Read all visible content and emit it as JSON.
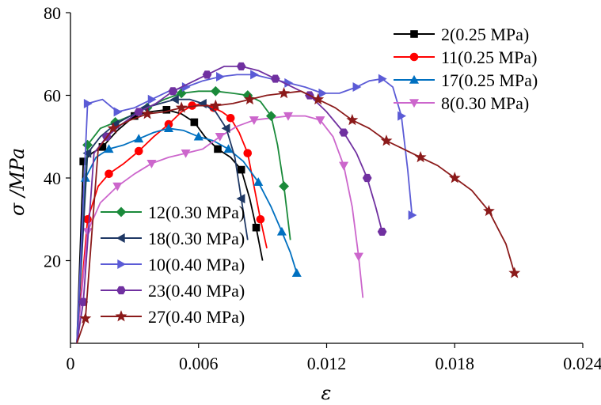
{
  "chart_data": {
    "type": "line",
    "xlabel": "ε",
    "ylabel": "σ /MPa",
    "xlim": [
      0,
      0.024
    ],
    "ylim": [
      0,
      80
    ],
    "xticks": [
      0,
      0.006,
      0.012,
      0.018,
      0.024
    ],
    "xtick_labels": [
      "0",
      "0.006",
      "0.012",
      "0.018",
      "0.024"
    ],
    "yticks": [
      20,
      40,
      60,
      80
    ],
    "ytick_labels": [
      "20",
      "40",
      "60",
      "80"
    ],
    "grid": false,
    "legend": [
      "top-right",
      "bottom-left"
    ],
    "series": [
      {
        "name": "2(0.25 MPa)",
        "color": "#000000",
        "marker": "square",
        "legend_group": 0,
        "x": [
          0.0003,
          0.0006,
          0.001,
          0.0015,
          0.0022,
          0.003,
          0.0037,
          0.0045,
          0.0052,
          0.0058,
          0.0063,
          0.0069,
          0.0075,
          0.008,
          0.0084,
          0.0087,
          0.009
        ],
        "y": [
          0,
          44,
          46,
          47.5,
          51.5,
          55,
          56,
          56.5,
          55.5,
          53.5,
          50,
          47,
          45,
          42,
          35,
          28,
          20
        ]
      },
      {
        "name": "11(0.25 MPa)",
        "color": "#ff0000",
        "marker": "circle",
        "legend_group": 0,
        "x": [
          0.0003,
          0.0008,
          0.0013,
          0.0018,
          0.0025,
          0.0032,
          0.0039,
          0.0046,
          0.0052,
          0.0057,
          0.0062,
          0.0067,
          0.0071,
          0.0075,
          0.0079,
          0.0083,
          0.0086,
          0.0089,
          0.0092
        ],
        "y": [
          0,
          30,
          38,
          41,
          43.5,
          46.5,
          50,
          53,
          56,
          57.5,
          58,
          57,
          56,
          54.5,
          51,
          46,
          38,
          30,
          23
        ]
      },
      {
        "name": "17(0.25 MPa)",
        "color": "#0070c0",
        "marker": "triangle-up",
        "legend_group": 0,
        "x": [
          0.0003,
          0.0007,
          0.0012,
          0.0018,
          0.0025,
          0.0032,
          0.0039,
          0.0046,
          0.0053,
          0.006,
          0.0067,
          0.0074,
          0.0081,
          0.0088,
          0.0094,
          0.0099,
          0.0103,
          0.0106
        ],
        "y": [
          0,
          40,
          45,
          47,
          48,
          49.5,
          51,
          52,
          51.5,
          50,
          49,
          47,
          44,
          39,
          33,
          27,
          22,
          17
        ]
      },
      {
        "name": "8(0.30 MPa)",
        "color": "#cc66cc",
        "marker": "triangle-down",
        "legend_group": 0,
        "x": [
          0.0003,
          0.0008,
          0.0014,
          0.0022,
          0.003,
          0.0038,
          0.0046,
          0.0054,
          0.0062,
          0.007,
          0.0078,
          0.0086,
          0.0094,
          0.0102,
          0.011,
          0.0117,
          0.0123,
          0.0128,
          0.0132,
          0.0135,
          0.0137
        ],
        "y": [
          0,
          27,
          34,
          38,
          41,
          43.5,
          45,
          46,
          47,
          50,
          52.5,
          54,
          54.5,
          55,
          55,
          54,
          50,
          43,
          33,
          21,
          11
        ]
      },
      {
        "name": "12(0.30 MPa)",
        "color": "#1a8a3a",
        "marker": "diamond",
        "legend_group": 1,
        "x": [
          0.0003,
          0.0008,
          0.0014,
          0.0021,
          0.0028,
          0.0036,
          0.0044,
          0.0052,
          0.006,
          0.0068,
          0.0076,
          0.0083,
          0.0089,
          0.0094,
          0.0097,
          0.01,
          0.0103
        ],
        "y": [
          0,
          48,
          52,
          53.5,
          55,
          57,
          59,
          60.5,
          61,
          61,
          60.5,
          60,
          58.5,
          55,
          48,
          38,
          25
        ]
      },
      {
        "name": "18(0.30 MPa)",
        "color": "#1f3864",
        "marker": "triangle-left",
        "legend_group": 1,
        "x": [
          0.0003,
          0.0008,
          0.0014,
          0.0021,
          0.0028,
          0.0035,
          0.0042,
          0.0049,
          0.0056,
          0.0062,
          0.0068,
          0.0073,
          0.0077,
          0.008,
          0.0083
        ],
        "y": [
          0,
          46,
          50,
          53,
          55,
          57,
          58,
          59,
          59,
          58,
          56,
          52,
          45,
          35,
          25
        ]
      },
      {
        "name": "10(0.40 MPa)",
        "color": "#5b5bd6",
        "marker": "triangle-right",
        "legend_group": 1,
        "x": [
          0.0003,
          0.0008,
          0.0015,
          0.0022,
          0.003,
          0.0038,
          0.0046,
          0.0054,
          0.0062,
          0.007,
          0.0078,
          0.0086,
          0.0094,
          0.0102,
          0.011,
          0.0118,
          0.0126,
          0.0134,
          0.014,
          0.0146,
          0.0151,
          0.0155,
          0.0158,
          0.016
        ],
        "y": [
          0,
          58,
          59,
          56,
          57,
          59,
          61,
          62,
          63.5,
          64.5,
          65,
          65,
          64,
          63,
          62,
          60.5,
          60.5,
          62,
          63.5,
          64,
          62,
          55,
          42,
          31
        ]
      },
      {
        "name": "23(0.40 MPa)",
        "color": "#7030a0",
        "marker": "hexagon",
        "legend_group": 1,
        "x": [
          0.0003,
          0.0006,
          0.0011,
          0.0017,
          0.0024,
          0.0032,
          0.004,
          0.0048,
          0.0056,
          0.0064,
          0.0072,
          0.008,
          0.0088,
          0.0096,
          0.0104,
          0.0112,
          0.012,
          0.0128,
          0.0134,
          0.0139,
          0.0143,
          0.0146
        ],
        "y": [
          0,
          10,
          46,
          50,
          53,
          56,
          58,
          61,
          63,
          65,
          67,
          67,
          66,
          64,
          62,
          60,
          56,
          51,
          46,
          40,
          33,
          27
        ]
      },
      {
        "name": "27(0.40 MPa)",
        "color": "#8b1a1a",
        "marker": "star",
        "legend_group": 1,
        "x": [
          0.0003,
          0.0007,
          0.0013,
          0.002,
          0.0028,
          0.0036,
          0.0044,
          0.0052,
          0.006,
          0.0068,
          0.0076,
          0.0084,
          0.0092,
          0.01,
          0.0108,
          0.0116,
          0.0124,
          0.0132,
          0.014,
          0.0148,
          0.0156,
          0.0164,
          0.0172,
          0.018,
          0.0188,
          0.0196,
          0.0204,
          0.0208
        ],
        "y": [
          0,
          6,
          47,
          52,
          54,
          55.5,
          56,
          57,
          57.5,
          57.5,
          58,
          59,
          60,
          60.5,
          61,
          59,
          57,
          54,
          52,
          49,
          47,
          45,
          43,
          40,
          37,
          32,
          24,
          17
        ]
      }
    ]
  }
}
